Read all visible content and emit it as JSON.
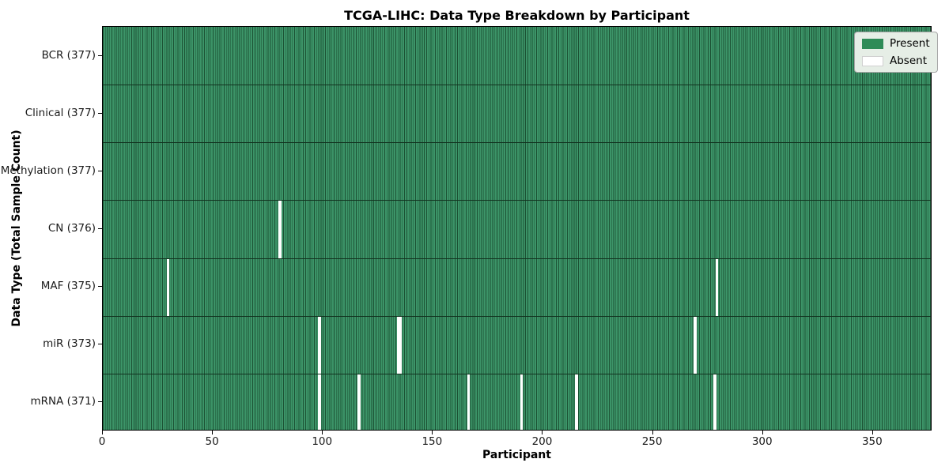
{
  "chart_data": {
    "type": "heatmap",
    "title": "TCGA-LIHC: Data Type Breakdown by Participant",
    "xlabel": "Participant",
    "ylabel": "Data Type (Total Sample Count)",
    "total_participants": 377,
    "x_ticks": [
      0,
      50,
      100,
      150,
      200,
      250,
      300,
      350
    ],
    "x_range": [
      0,
      377
    ],
    "grid": false,
    "rows": [
      {
        "data_type": "BCR",
        "label": "BCR (377)",
        "present_count": 377,
        "absent_participants": []
      },
      {
        "data_type": "Clinical",
        "label": "Clinical (377)",
        "present_count": 377,
        "absent_participants": []
      },
      {
        "data_type": "Methylation",
        "label": "Methylation (377)",
        "present_count": 377,
        "absent_participants": []
      },
      {
        "data_type": "CN",
        "label": "CN (376)",
        "present_count": 376,
        "absent_participants": [
          80
        ]
      },
      {
        "data_type": "MAF",
        "label": "MAF (375)",
        "present_count": 375,
        "absent_participants": [
          29,
          279
        ]
      },
      {
        "data_type": "miR",
        "label": "miR (373)",
        "present_count": 373,
        "absent_participants": [
          98,
          134,
          135,
          269
        ]
      },
      {
        "data_type": "mRNA",
        "label": "mRNA (371)",
        "present_count": 371,
        "absent_participants": [
          98,
          116,
          166,
          190,
          215,
          278
        ]
      }
    ],
    "legend": {
      "position": "upper right",
      "entries": [
        {
          "key": "present",
          "label": "Present",
          "color": "#2e8b57"
        },
        {
          "key": "absent",
          "label": "Absent",
          "color": "#ffffff"
        }
      ]
    },
    "colors": {
      "present_fill": "#3c9468",
      "present_solid": "#2e8b57",
      "cell_edge": "#1c5234",
      "row_separator": "#12321f",
      "absent": "#ffffff",
      "axes_spine": "#000000",
      "background": "#ffffff",
      "legend_bg": "#e6eee6",
      "legend_border": "#a6a6a6"
    }
  }
}
